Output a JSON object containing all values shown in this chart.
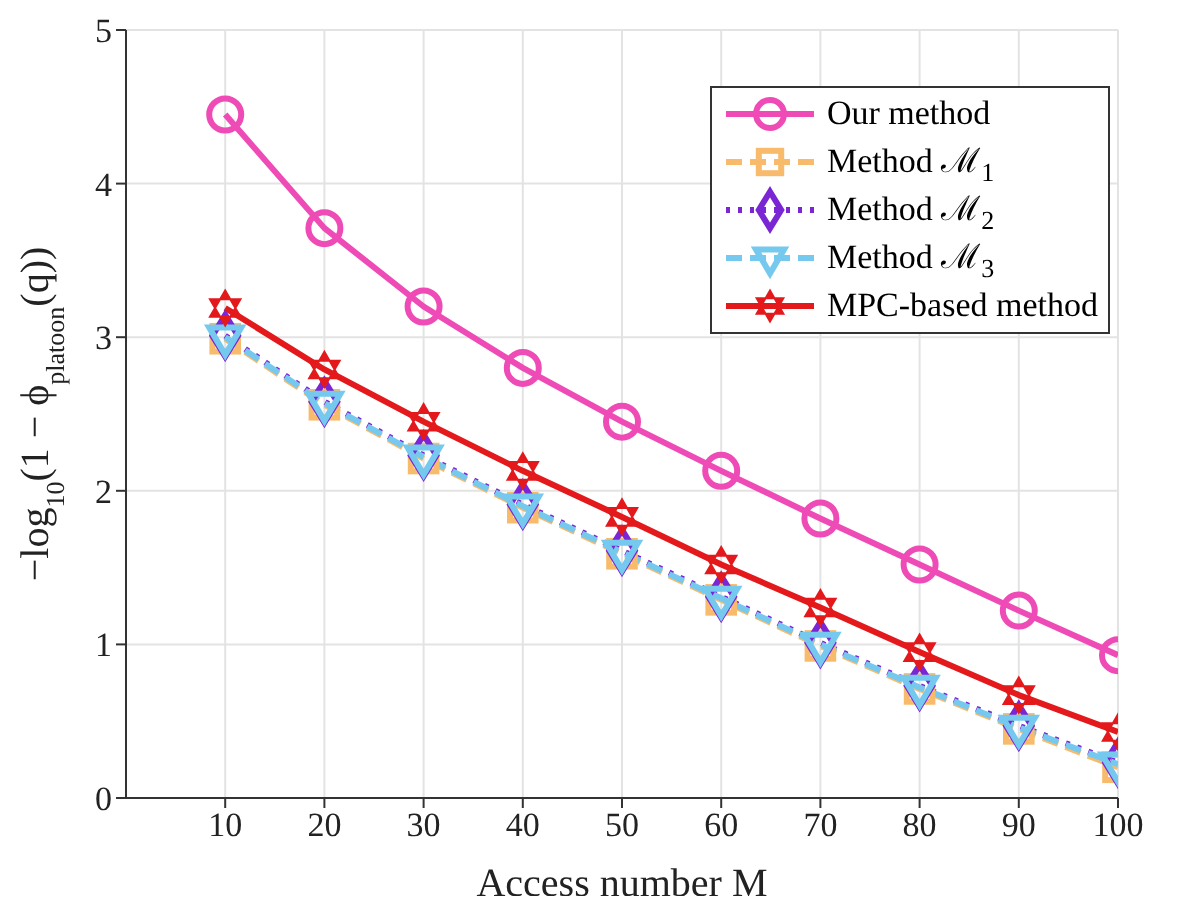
{
  "chart_data": {
    "type": "line",
    "xlabel": "Access number M",
    "ylabel": "−log$_{10}$(1 − ϕ$_{platoon}$(q))",
    "x": [
      10,
      20,
      30,
      40,
      50,
      60,
      70,
      80,
      90,
      100
    ],
    "series": [
      {
        "name": "Our method",
        "color": "#ef4bb6",
        "marker": "circle",
        "line_style": "solid",
        "values": [
          4.45,
          3.71,
          3.2,
          2.8,
          2.45,
          2.13,
          1.82,
          1.52,
          1.22,
          0.93
        ]
      },
      {
        "name": "Method ℳ$_{1}$",
        "color": "#f8bb6c",
        "marker": "square",
        "line_style": "dashed",
        "values": [
          2.99,
          2.56,
          2.21,
          1.89,
          1.59,
          1.29,
          0.99,
          0.71,
          0.45,
          0.2
        ]
      },
      {
        "name": "Method ℳ$_{2}$",
        "color": "#7b26d4",
        "marker": "diamond",
        "line_style": "dotted",
        "values": [
          3.01,
          2.58,
          2.23,
          1.91,
          1.61,
          1.31,
          1.01,
          0.73,
          0.47,
          0.23
        ]
      },
      {
        "name": "Method ℳ$_{3}$",
        "color": "#75c9ee",
        "marker": "triangle",
        "line_style": "dashed",
        "values": [
          3.0,
          2.57,
          2.22,
          1.9,
          1.6,
          1.3,
          1.0,
          0.72,
          0.46,
          0.22
        ]
      },
      {
        "name": "MPC-based method",
        "color": "#e3191c",
        "marker": "star",
        "line_style": "solid",
        "values": [
          3.19,
          2.79,
          2.45,
          2.13,
          1.83,
          1.52,
          1.24,
          0.95,
          0.67,
          0.43
        ]
      }
    ],
    "xlim": [
      0,
      100
    ],
    "xticks": [
      10,
      20,
      30,
      40,
      50,
      60,
      70,
      80,
      90,
      100
    ],
    "ylim": [
      0,
      5
    ],
    "yticks": [
      0,
      1,
      2,
      3,
      4,
      5
    ],
    "grid": true,
    "legend": "top right"
  }
}
